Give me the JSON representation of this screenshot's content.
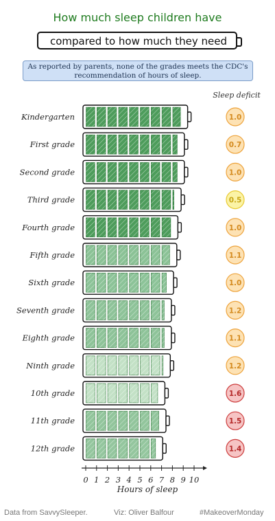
{
  "title": {
    "line1": "How much sleep children have",
    "line2": "compared to how much they need"
  },
  "subtitle": "As reported by parents, none of the grades meets the CDC's recommendation of hours of sleep.",
  "deficit_header": "Sleep deficit",
  "footer": {
    "source": "Data from SavvySleeper.",
    "credit": "Viz: Oliver Balfour",
    "tag": "#MakeoverMonday"
  },
  "colors": {
    "fill_dark": "#2e8b3e",
    "fill_mid": "#5aa86a",
    "fill_light": "#a9d4ae",
    "deficit_yellow": "#f5e66a",
    "deficit_orange": "#f0a030",
    "deficit_red": "#e05050"
  },
  "chart_data": {
    "type": "bar",
    "orientation": "horizontal",
    "xlabel": "Hours of sleep",
    "xlim": [
      0,
      10
    ],
    "xticks": [
      "0",
      "1",
      "2",
      "3",
      "4",
      "5",
      "6",
      "7",
      "8",
      "9",
      "10"
    ],
    "categories": [
      "Kindergarten",
      "First grade",
      "Second grade",
      "Third grade",
      "Fourth grade",
      "Fifth grade",
      "Sixth grade",
      "Seventh grade",
      "Eighth grade",
      "Ninth grade",
      "10th grade",
      "11th grade",
      "12th grade"
    ],
    "series": [
      {
        "name": "Hours of sleep",
        "values": [
          8.9,
          8.6,
          8.6,
          8.3,
          8.0,
          7.9,
          7.6,
          7.4,
          7.4,
          7.3,
          6.8,
          6.9,
          6.6
        ]
      },
      {
        "name": "Sleep deficit",
        "values": [
          1.0,
          0.7,
          1.0,
          0.5,
          1.0,
          1.1,
          1.0,
          1.2,
          1.1,
          1.2,
          1.6,
          1.5,
          1.4
        ]
      }
    ],
    "deficit_labels": [
      "1.0",
      "0.7",
      "1.0",
      "0.5",
      "1.0",
      "1.1",
      "1.0",
      "1.2",
      "1.1",
      "1.2",
      "1.6",
      "1.5",
      "1.4"
    ]
  }
}
